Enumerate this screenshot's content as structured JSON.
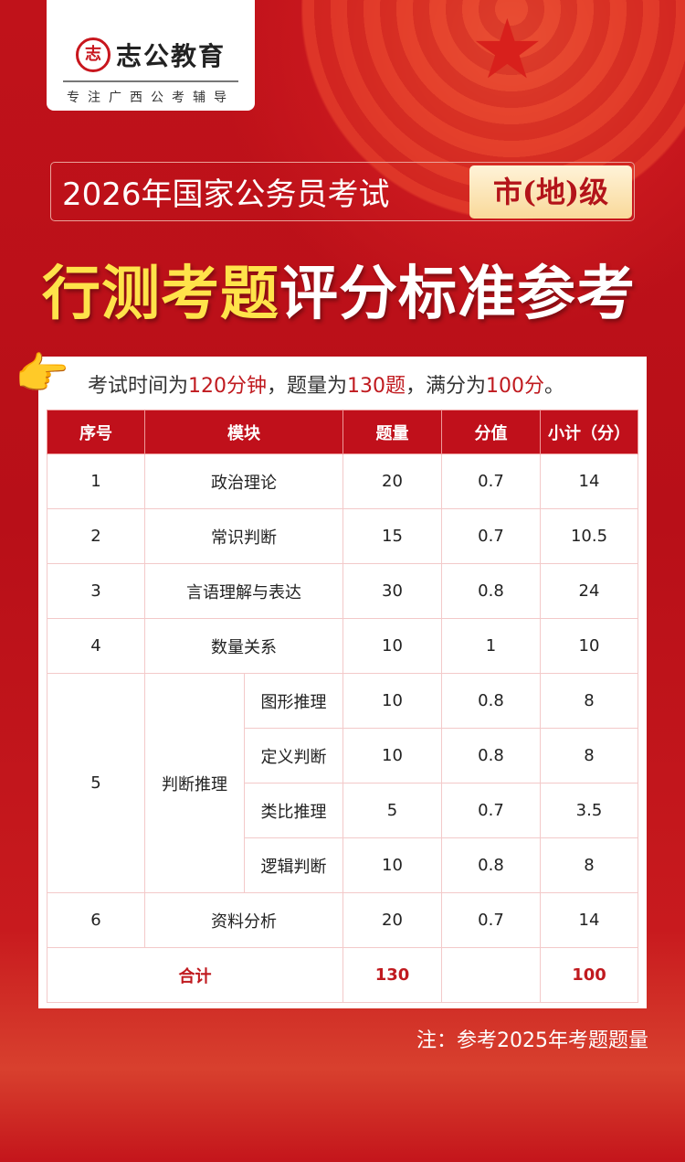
{
  "brand": {
    "name": "志公教育",
    "seal": "志",
    "slogan": "专注广西公考辅导"
  },
  "header": {
    "subtitle": "2026年国家公务员考试",
    "badge": "市(地)级",
    "title_highlight": "行测考题",
    "title_rest": "评分标准参考"
  },
  "intro": {
    "p1": "考试时间为",
    "time": "120分钟",
    "p2": "，题量为",
    "count": "130题",
    "p3": "，满分为",
    "score": "100分",
    "p4": "。"
  },
  "table": {
    "headers": [
      "序号",
      "模块",
      "题量",
      "分值",
      "小计（分）"
    ],
    "rows": [
      {
        "no": "1",
        "module": "政治理论",
        "qty": "20",
        "value": "0.7",
        "subtotal": "14"
      },
      {
        "no": "2",
        "module": "常识判断",
        "qty": "15",
        "value": "0.7",
        "subtotal": "10.5"
      },
      {
        "no": "3",
        "module": "言语理解与表达",
        "qty": "30",
        "value": "0.8",
        "subtotal": "24"
      },
      {
        "no": "4",
        "module": "数量关系",
        "qty": "10",
        "value": "1",
        "subtotal": "10"
      },
      {
        "no": "5",
        "module": "判断推理",
        "subs": [
          {
            "name": "图形推理",
            "qty": "10",
            "value": "0.8",
            "subtotal": "8"
          },
          {
            "name": "定义判断",
            "qty": "10",
            "value": "0.8",
            "subtotal": "8"
          },
          {
            "name": "类比推理",
            "qty": "5",
            "value": "0.7",
            "subtotal": "3.5"
          },
          {
            "name": "逻辑判断",
            "qty": "10",
            "value": "0.8",
            "subtotal": "8"
          }
        ]
      },
      {
        "no": "6",
        "module": "资料分析",
        "qty": "20",
        "value": "0.7",
        "subtotal": "14"
      }
    ],
    "total": {
      "label": "合计",
      "qty": "130",
      "value": "",
      "subtotal": "100"
    }
  },
  "note": "注：参考2025年考题题量",
  "colors": {
    "red": "#c0101b",
    "yellow": "#ffe34a"
  }
}
